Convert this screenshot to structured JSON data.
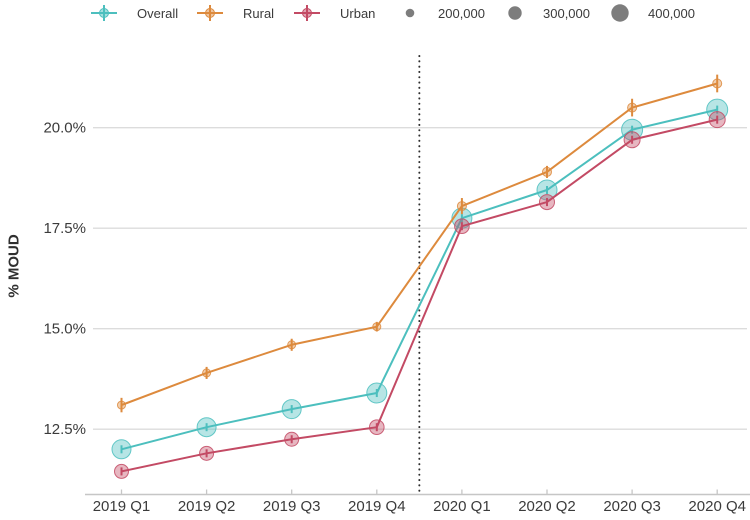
{
  "figure": {
    "background": "#ffffff",
    "text_color": "#3b3b3b",
    "grid_color": "#dcdcdc",
    "axis_line_color": "#c6c6c6",
    "divider_color": "#2e2e2e"
  },
  "legend": {
    "series_items": [
      {
        "label": "Overall",
        "color": "#4cbfbe"
      },
      {
        "label": "Rural",
        "color": "#dd8a3d"
      },
      {
        "label": "Urban",
        "color": "#c34a64"
      }
    ],
    "size_items": [
      {
        "label": "200,000",
        "radius": 4.3
      },
      {
        "label": "300,000",
        "radius": 6.7
      },
      {
        "label": "400,000",
        "radius": 8.7
      }
    ],
    "size_marker_color": "#7d7d7d"
  },
  "chart_data": {
    "type": "line",
    "title": "",
    "xlabel": "",
    "ylabel": "% MOUD",
    "categories": [
      "2019 Q1",
      "2019 Q2",
      "2019 Q3",
      "2019 Q4",
      "2020 Q1",
      "2020 Q2",
      "2020 Q3",
      "2020 Q4"
    ],
    "y_ticks": [
      12.5,
      15.0,
      17.5,
      20.0
    ],
    "y_tick_suffix": "%",
    "ylim": [
      10.9,
      22.0
    ],
    "grid": "horizontal",
    "legend_position": "top",
    "divider": {
      "between": [
        "2019 Q4",
        "2020 Q1"
      ],
      "style": "dotted-vertical"
    },
    "series": [
      {
        "name": "Overall",
        "color": "#4cbfbe",
        "values": [
          12.0,
          12.55,
          13.0,
          13.4,
          17.75,
          18.45,
          19.95,
          20.45
        ],
        "errors": [
          0.1,
          0.1,
          0.1,
          0.1,
          0.1,
          0.1,
          0.1,
          0.1
        ],
        "point_radii": [
          9.5,
          9.5,
          9.5,
          10,
          10,
          10,
          10.5,
          10.5
        ]
      },
      {
        "name": "Rural",
        "color": "#dd8a3d",
        "values": [
          13.1,
          13.9,
          14.6,
          15.05,
          18.05,
          18.9,
          20.5,
          21.1
        ],
        "errors": [
          0.18,
          0.15,
          0.15,
          0.12,
          0.2,
          0.15,
          0.22,
          0.22
        ],
        "point_radii": [
          4,
          4,
          4,
          4,
          4.5,
          4.5,
          4.5,
          4.5
        ]
      },
      {
        "name": "Urban",
        "color": "#c34a64",
        "values": [
          11.45,
          11.9,
          12.25,
          12.55,
          17.55,
          18.15,
          19.7,
          20.2
        ],
        "errors": [
          0.1,
          0.1,
          0.1,
          0.1,
          0.1,
          0.1,
          0.1,
          0.1
        ],
        "point_radii": [
          7,
          7,
          7,
          7.3,
          7.3,
          7.5,
          8,
          8
        ]
      }
    ]
  }
}
